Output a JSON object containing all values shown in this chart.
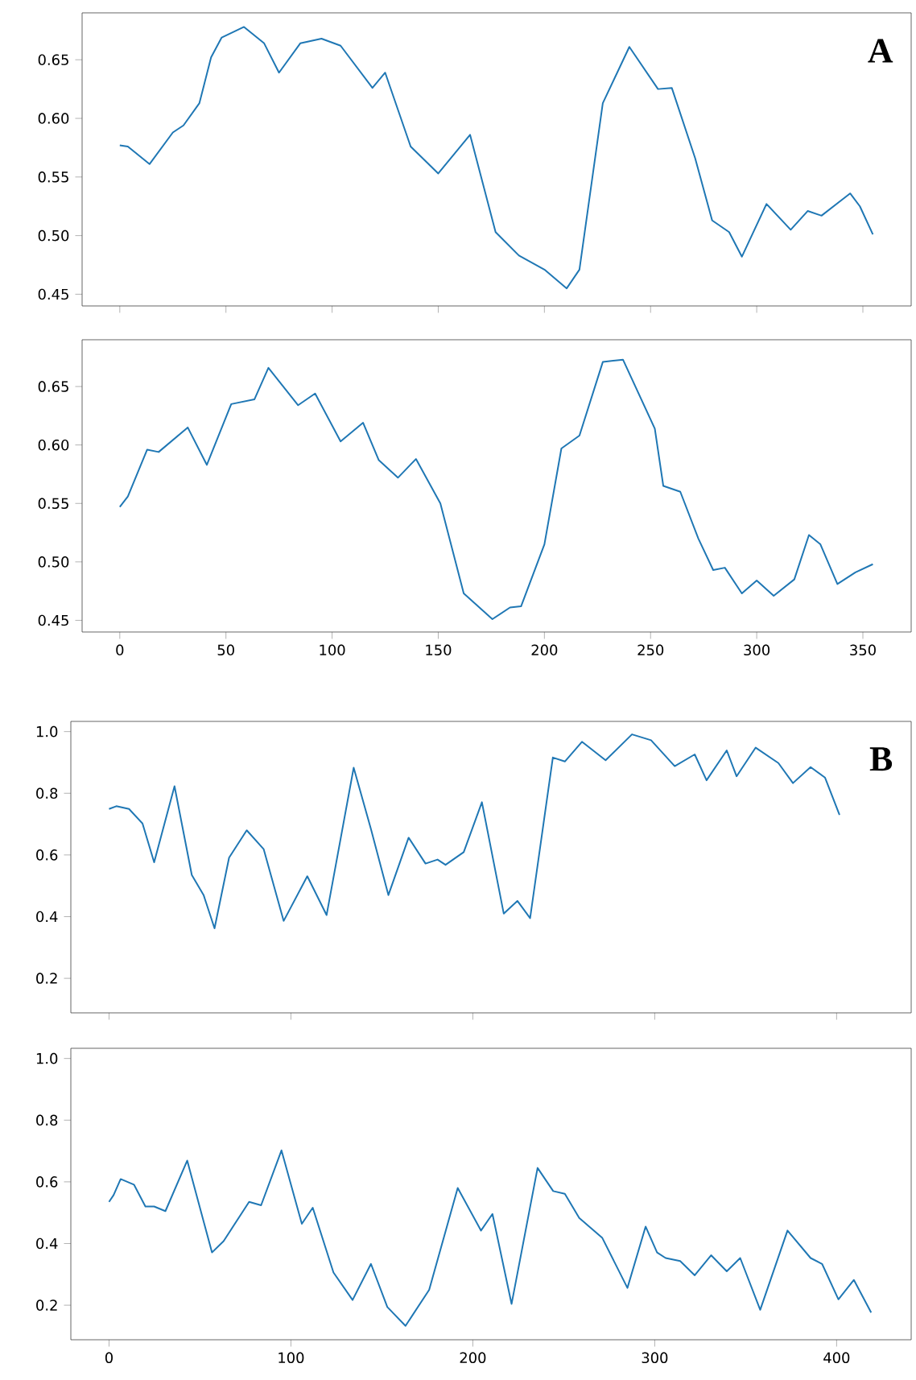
{
  "chart_data": [
    {
      "type": "line",
      "color": "#1f77b4",
      "annotations": [
        "A"
      ],
      "tick_labels": "y",
      "x": [
        0,
        3.8,
        14,
        25,
        30,
        37.5,
        43,
        48,
        58.5,
        68,
        75,
        85,
        95,
        104,
        119,
        125,
        137,
        150,
        165,
        177,
        188,
        200,
        210.5,
        216.5,
        227.5,
        240,
        253.5,
        260,
        271,
        279,
        287,
        293,
        304.6,
        316,
        324,
        330.5,
        344,
        348.6,
        354.7
      ],
      "values": [
        0.577,
        0.576,
        0.561,
        0.588,
        0.594,
        0.613,
        0.652,
        0.669,
        0.678,
        0.664,
        0.639,
        0.664,
        0.668,
        0.662,
        0.626,
        0.639,
        0.576,
        0.553,
        0.586,
        0.503,
        0.483,
        0.471,
        0.455,
        0.471,
        0.613,
        0.661,
        0.625,
        0.626,
        0.566,
        0.513,
        0.503,
        0.482,
        0.527,
        0.505,
        0.521,
        0.517,
        0.536,
        0.525,
        0.501
      ],
      "xlim": [
        -17.75,
        372.75
      ],
      "ylim": [
        0.44,
        0.69
      ],
      "xticks": [
        0,
        50,
        100,
        150,
        200,
        250,
        300,
        350
      ],
      "yticks": [
        {
          "value": 0.45,
          "label": "0.45"
        },
        {
          "value": 0.5,
          "label": "0.50"
        },
        {
          "value": 0.55,
          "label": "0.55"
        },
        {
          "value": 0.6,
          "label": "0.60"
        },
        {
          "value": 0.65,
          "label": "0.65"
        }
      ]
    },
    {
      "type": "line",
      "color": "#1f77b4",
      "x": [
        0,
        3.8,
        12.9,
        18.3,
        32,
        41,
        52.5,
        63.4,
        70,
        84,
        92,
        104,
        114.6,
        122,
        131,
        139.5,
        151,
        162,
        175.5,
        183.8,
        189,
        200,
        208,
        216.5,
        227.5,
        237,
        252,
        256,
        264,
        272.5,
        279.5,
        285,
        293,
        300,
        308,
        317.7,
        324.6,
        330,
        338,
        346.5,
        354.7
      ],
      "values": [
        0.547,
        0.556,
        0.596,
        0.594,
        0.615,
        0.583,
        0.635,
        0.639,
        0.666,
        0.634,
        0.644,
        0.603,
        0.619,
        0.587,
        0.572,
        0.588,
        0.55,
        0.473,
        0.451,
        0.461,
        0.462,
        0.515,
        0.597,
        0.608,
        0.671,
        0.673,
        0.614,
        0.565,
        0.56,
        0.52,
        0.493,
        0.495,
        0.473,
        0.484,
        0.471,
        0.485,
        0.523,
        0.515,
        0.481,
        0.491,
        0.498
      ],
      "xlim": [
        -17.75,
        372.75
      ],
      "ylim": [
        0.44,
        0.69
      ],
      "xticks": [
        0,
        50,
        100,
        150,
        200,
        250,
        300,
        350
      ],
      "yticks": [
        {
          "value": 0.45,
          "label": "0.45"
        },
        {
          "value": 0.5,
          "label": "0.50"
        },
        {
          "value": 0.55,
          "label": "0.55"
        },
        {
          "value": 0.6,
          "label": "0.60"
        },
        {
          "value": 0.65,
          "label": "0.65"
        }
      ]
    },
    {
      "type": "line",
      "color": "#1f77b4",
      "annotations": [
        "B"
      ],
      "tick_labels": "y",
      "x": [
        0,
        4,
        11,
        18.4,
        24.8,
        36,
        45.5,
        52,
        58,
        66,
        75.7,
        85,
        96,
        109,
        119.6,
        134.5,
        144,
        153.6,
        164.7,
        174,
        180.6,
        185,
        195,
        205,
        217,
        224.5,
        231.5,
        244,
        250.6,
        260,
        273,
        287.5,
        298,
        311,
        322,
        328.5,
        339.6,
        345,
        355.5,
        368,
        376,
        385.7,
        393.6,
        401.6
      ],
      "values": [
        0.749,
        0.758,
        0.749,
        0.702,
        0.576,
        0.823,
        0.535,
        0.47,
        0.362,
        0.591,
        0.68,
        0.619,
        0.386,
        0.531,
        0.405,
        0.883,
        0.684,
        0.47,
        0.656,
        0.572,
        0.585,
        0.568,
        0.609,
        0.771,
        0.41,
        0.451,
        0.395,
        0.916,
        0.903,
        0.967,
        0.907,
        0.991,
        0.972,
        0.888,
        0.926,
        0.842,
        0.939,
        0.855,
        0.948,
        0.898,
        0.833,
        0.885,
        0.851,
        0.73
      ],
      "xlim": [
        -21,
        441
      ],
      "ylim": [
        0.088,
        1.033
      ],
      "xticks": [
        0,
        100,
        200,
        300,
        400
      ],
      "yticks": [
        {
          "value": 0.2,
          "label": "0.2"
        },
        {
          "value": 0.4,
          "label": "0.4"
        },
        {
          "value": 0.6,
          "label": "0.6"
        },
        {
          "value": 0.8,
          "label": "0.8"
        },
        {
          "value": 1.0,
          "label": "1.0"
        }
      ]
    },
    {
      "type": "line",
      "color": "#1f77b4",
      "x": [
        0,
        2.5,
        6.4,
        13.7,
        20,
        24.8,
        31,
        43,
        56.6,
        63,
        77,
        83.6,
        94.8,
        106,
        112,
        123.4,
        133.9,
        144,
        153,
        163,
        176,
        191.7,
        204.5,
        210.8,
        221.3,
        235.6,
        244.2,
        250.6,
        258.5,
        271.2,
        285,
        295,
        301.3,
        306,
        314,
        322,
        331,
        339.6,
        347,
        358,
        373,
        385.7,
        392,
        401,
        409.5,
        419
      ],
      "values": [
        0.535,
        0.557,
        0.609,
        0.591,
        0.52,
        0.52,
        0.505,
        0.669,
        0.371,
        0.408,
        0.535,
        0.524,
        0.702,
        0.464,
        0.516,
        0.306,
        0.217,
        0.334,
        0.194,
        0.133,
        0.25,
        0.58,
        0.442,
        0.496,
        0.204,
        0.645,
        0.57,
        0.561,
        0.483,
        0.418,
        0.256,
        0.455,
        0.371,
        0.353,
        0.343,
        0.297,
        0.362,
        0.31,
        0.353,
        0.185,
        0.442,
        0.353,
        0.334,
        0.219,
        0.282,
        0.176
      ],
      "xlim": [
        -21,
        441
      ],
      "ylim": [
        0.088,
        1.033
      ],
      "xticks": [
        0,
        100,
        200,
        300,
        400
      ],
      "yticks": [
        {
          "value": 0.2,
          "label": "0.2"
        },
        {
          "value": 0.4,
          "label": "0.4"
        },
        {
          "value": 0.6,
          "label": "0.6"
        },
        {
          "value": 0.8,
          "label": "0.8"
        },
        {
          "value": 1.0,
          "label": "1.0"
        }
      ]
    }
  ]
}
